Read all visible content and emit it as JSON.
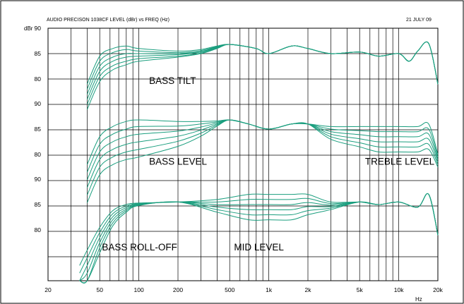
{
  "chart_data": {
    "type": "line",
    "title": "AUDIO PRECISON 1038CF  LEVEL (dBr) vs FREQ (Hz)",
    "date": "21 JULY 09",
    "ylabel": "dBr",
    "xlabel": "Hz",
    "x_scale": "log",
    "xlim": [
      20,
      20000
    ],
    "grid": true,
    "colors": {
      "trace": "#1a9e7e",
      "grid": "#000000",
      "background": "#ffffff"
    },
    "x_ticks": [
      {
        "value": 20,
        "label": "20"
      },
      {
        "value": 50,
        "label": "50"
      },
      {
        "value": 100,
        "label": "100"
      },
      {
        "value": 200,
        "label": "200"
      },
      {
        "value": 500,
        "label": "500"
      },
      {
        "value": 1000,
        "label": "1k"
      },
      {
        "value": 2000,
        "label": "2k"
      },
      {
        "value": 5000,
        "label": "5k"
      },
      {
        "value": 10000,
        "label": "10k"
      },
      {
        "value": 20000,
        "label": "20k"
      }
    ],
    "panels": [
      {
        "annotations": [
          {
            "text": "BASS TILT",
            "x": 120,
            "y": 79
          }
        ],
        "y_ticks": [
          "90",
          "85",
          "80"
        ],
        "curves": [
          {
            "x": [
              40,
              50,
              63,
              80,
              100,
              200,
              300,
              400,
              500,
              800,
              1000,
              1500,
              2000,
              3000,
              5000,
              7000,
              10000,
              12000,
              14000,
              17000,
              20000
            ],
            "y": [
              79,
              84.5,
              86,
              86.5,
              86,
              85.5,
              85.8,
              86.5,
              86.8,
              86,
              85,
              86.5,
              86,
              85,
              85.3,
              84.5,
              85,
              83.5,
              85.5,
              87,
              79
            ]
          },
          {
            "x": [
              40,
              50,
              63,
              80,
              100,
              200,
              300,
              400,
              500,
              800,
              1000,
              1500,
              2000,
              3000,
              5000,
              7000,
              10000,
              12000,
              14000,
              17000,
              20000
            ],
            "y": [
              78,
              83.5,
              85.2,
              85.8,
              85.5,
              85.2,
              85.6,
              86.4,
              86.8,
              86,
              85,
              86.5,
              86,
              85,
              85.3,
              84.5,
              85,
              83.5,
              85.5,
              87,
              79
            ]
          },
          {
            "x": [
              40,
              50,
              63,
              80,
              100,
              200,
              300,
              400,
              500,
              800,
              1000,
              1500,
              2000,
              3000,
              5000,
              7000,
              10000,
              12000,
              14000,
              17000,
              20000
            ],
            "y": [
              77,
              82.5,
              84.3,
              85,
              85,
              85,
              85.4,
              86.3,
              86.8,
              86,
              85,
              86.5,
              86,
              85,
              85.3,
              84.5,
              85,
              83.5,
              85.5,
              87,
              79
            ]
          },
          {
            "x": [
              40,
              50,
              63,
              80,
              100,
              200,
              300,
              400,
              500,
              800,
              1000,
              1500,
              2000,
              3000,
              5000,
              7000,
              10000,
              12000,
              14000,
              17000,
              20000
            ],
            "y": [
              76,
              81.5,
              83.5,
              84.3,
              84.5,
              84.8,
              85.3,
              86.2,
              86.8,
              86,
              85,
              86.5,
              86,
              85,
              85.3,
              84.5,
              85,
              83.5,
              85.5,
              87,
              79
            ]
          },
          {
            "x": [
              40,
              50,
              63,
              80,
              100,
              200,
              300,
              400,
              500,
              800,
              1000,
              1500,
              2000,
              3000,
              5000,
              7000,
              10000,
              12000,
              14000,
              17000,
              20000
            ],
            "y": [
              75,
              80.5,
              82.6,
              83.5,
              84,
              84.5,
              85.1,
              86.1,
              86.8,
              86,
              85,
              86.5,
              86,
              85,
              85.3,
              84.5,
              85,
              83.5,
              85.5,
              87,
              79
            ]
          },
          {
            "x": [
              40,
              50,
              63,
              80,
              100,
              200,
              300,
              400,
              500,
              800,
              1000,
              1500,
              2000,
              3000,
              5000,
              7000,
              10000,
              12000,
              14000,
              17000,
              20000
            ],
            "y": [
              74,
              79.5,
              81.8,
              82.8,
              83.5,
              84.3,
              85,
              86,
              86.8,
              86,
              85,
              86.5,
              86,
              85,
              85.3,
              84.5,
              85,
              83.5,
              85.5,
              87,
              79
            ]
          }
        ]
      },
      {
        "annotations": [
          {
            "text": "BASS LEVEL",
            "x": 120,
            "y": 78
          },
          {
            "text": "TREBLE LEVEL",
            "x": 5500,
            "y": 78
          }
        ],
        "y_ticks": [
          "90",
          "85",
          "80"
        ],
        "curves": [
          {
            "x": [
              40,
              50,
              63,
              80,
              100,
              200,
              300,
              400,
              500,
              700,
              1000,
              1500,
              2000,
              3000,
              5000,
              7000,
              10000,
              14000,
              17000,
              20000
            ],
            "y": [
              78,
              83.5,
              85.5,
              86.5,
              86.8,
              86.5,
              86.5,
              86.6,
              86.8,
              86,
              85,
              86,
              86,
              85.5,
              85.5,
              85.5,
              85.5,
              85.5,
              86,
              80
            ]
          },
          {
            "x": [
              40,
              50,
              63,
              80,
              100,
              200,
              300,
              400,
              500,
              700,
              1000,
              1500,
              2000,
              3000,
              5000,
              7000,
              10000,
              14000,
              17000,
              20000
            ],
            "y": [
              76.5,
              82,
              84,
              85,
              85.5,
              85.6,
              86,
              86.4,
              86.8,
              86,
              85,
              86,
              86,
              85,
              84.7,
              84.5,
              84.5,
              84.5,
              85,
              79.5
            ]
          },
          {
            "x": [
              40,
              50,
              63,
              80,
              100,
              200,
              300,
              400,
              500,
              700,
              1000,
              1500,
              2000,
              3000,
              5000,
              7000,
              10000,
              14000,
              17000,
              20000
            ],
            "y": [
              75,
              80.5,
              82.5,
              83.5,
              84,
              84.6,
              85.4,
              86.2,
              86.8,
              86,
              85,
              86,
              86,
              84.5,
              83.9,
              83.5,
              83.5,
              83.5,
              84,
              79
            ]
          },
          {
            "x": [
              40,
              50,
              63,
              80,
              100,
              200,
              300,
              400,
              500,
              700,
              1000,
              1500,
              2000,
              3000,
              5000,
              7000,
              10000,
              14000,
              17000,
              20000
            ],
            "y": [
              73.5,
              79,
              81,
              82,
              82.5,
              83.6,
              84.8,
              86,
              86.8,
              86,
              85,
              86,
              86,
              84,
              83.1,
              82.5,
              82.5,
              82.5,
              83,
              78.5
            ]
          },
          {
            "x": [
              40,
              50,
              63,
              80,
              100,
              200,
              300,
              400,
              500,
              700,
              1000,
              1500,
              2000,
              3000,
              5000,
              7000,
              10000,
              14000,
              17000,
              20000
            ],
            "y": [
              72,
              77.5,
              79.5,
              80.5,
              81,
              82.6,
              84.2,
              85.8,
              86.8,
              86,
              85,
              86,
              86,
              83.5,
              82.3,
              81.5,
              81.5,
              81.5,
              82,
              78
            ]
          },
          {
            "x": [
              40,
              50,
              63,
              80,
              100,
              200,
              300,
              400,
              500,
              700,
              1000,
              1500,
              2000,
              3000,
              5000,
              7000,
              10000,
              14000,
              17000,
              20000
            ],
            "y": [
              70.5,
              76,
              78,
              79,
              79.5,
              81.6,
              83.6,
              85.6,
              86.8,
              86,
              85,
              86,
              86,
              83,
              81.5,
              80.5,
              80.5,
              80.5,
              81,
              77.5
            ]
          }
        ]
      },
      {
        "annotations": [
          {
            "text": "BASS ROLL-OFF",
            "x": 52,
            "y": 76
          },
          {
            "text": "MID LEVEL",
            "x": 540,
            "y": 76
          }
        ],
        "y_ticks": [
          "90",
          "85",
          "80"
        ],
        "curves": [
          {
            "x": [
              35,
              40,
              50,
              63,
              80,
              100,
              200,
              400,
              700,
              1000,
              1500,
              2000,
              3000,
              5000,
              7000,
              10000,
              14000,
              17000,
              20000
            ],
            "y": [
              73,
              76,
              80.5,
              83.8,
              85,
              85.3,
              85.5,
              86,
              87,
              87,
              87,
              87,
              85.5,
              85.5,
              85,
              85.5,
              84.5,
              87,
              79
            ]
          },
          {
            "x": [
              35,
              40,
              50,
              63,
              80,
              100,
              200,
              400,
              700,
              1000,
              1500,
              2000,
              3000,
              5000,
              7000,
              10000,
              14000,
              17000,
              20000
            ],
            "y": [
              71.5,
              74.5,
              79.5,
              83.2,
              84.7,
              85.2,
              85.5,
              85.5,
              86,
              86,
              86,
              86.2,
              85.2,
              85.5,
              85,
              85.5,
              84.5,
              87,
              79
            ]
          },
          {
            "x": [
              35,
              40,
              50,
              63,
              80,
              100,
              200,
              400,
              700,
              1000,
              1500,
              2000,
              3000,
              5000,
              7000,
              10000,
              14000,
              17000,
              20000
            ],
            "y": [
              70,
              73,
              78.5,
              82.6,
              84.4,
              85.1,
              85.5,
              85,
              85,
              85,
              85,
              85.4,
              84.9,
              85.5,
              85,
              85.5,
              84.5,
              87,
              79
            ]
          },
          {
            "x": [
              35,
              40,
              50,
              63,
              80,
              100,
              200,
              400,
              700,
              1000,
              1500,
              2000,
              3000,
              5000,
              7000,
              10000,
              14000,
              17000,
              20000
            ],
            "y": [
              68.5,
              71.5,
              77.5,
              82,
              84.1,
              85,
              85.5,
              84.5,
              84,
              84,
              84,
              84.6,
              84.6,
              85.5,
              85,
              85.5,
              84.5,
              87,
              79
            ]
          },
          {
            "x": [
              35,
              40,
              50,
              63,
              80,
              100,
              200,
              400,
              700,
              1000,
              1500,
              2000,
              3000,
              5000,
              7000,
              10000,
              14000,
              17000,
              20000
            ],
            "y": [
              67,
              70,
              76.5,
              81.4,
              83.8,
              84.9,
              85.5,
              84,
              83,
              83,
              83,
              83.8,
              84.3,
              85.5,
              85,
              85.5,
              84.5,
              87,
              79
            ]
          },
          {
            "x": [
              35,
              40,
              50,
              63,
              80,
              100,
              200,
              400,
              700,
              1000,
              1500,
              2000,
              3000,
              5000,
              7000,
              10000,
              14000,
              17000,
              20000
            ],
            "y": [
              65.5,
              68.5,
              75.5,
              80.8,
              83.5,
              84.8,
              85.5,
              83.5,
              82,
              82,
              82,
              83,
              84,
              85.5,
              85,
              85.5,
              84.5,
              87,
              79
            ]
          }
        ]
      }
    ]
  }
}
